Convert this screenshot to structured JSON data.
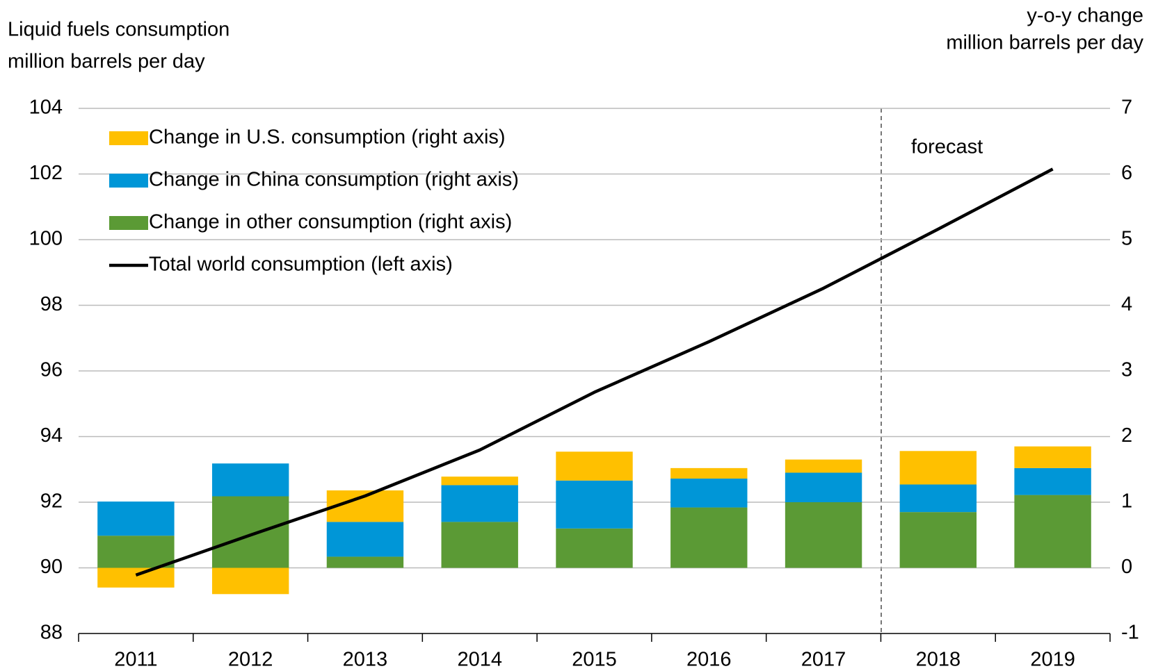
{
  "chart_data": {
    "type": "bar",
    "y_label": [
      "Liquid fuels consumption",
      "million barrels per day"
    ],
    "y2_label": [
      "y-o-y change",
      "million barrels per day"
    ],
    "annotation": "forecast",
    "categories": [
      "2011",
      "2012",
      "2013",
      "2014",
      "2015",
      "2016",
      "2017",
      "2018",
      "2019"
    ],
    "series": [
      {
        "name": "Change in U.S. consumption (right axis)",
        "color": "#ffc000",
        "axis": "y2",
        "type": "bar",
        "values": [
          -0.3,
          -0.4,
          0.48,
          0.13,
          0.44,
          0.16,
          0.2,
          0.51,
          0.33
        ]
      },
      {
        "name": "Change in China consumption (right axis)",
        "color": "#0096d7",
        "axis": "y2",
        "type": "bar",
        "values": [
          0.52,
          0.5,
          0.53,
          0.56,
          0.73,
          0.44,
          0.45,
          0.42,
          0.41
        ]
      },
      {
        "name": "Change in other consumption (right axis)",
        "color": "#5b9a35",
        "axis": "y2",
        "type": "bar",
        "values": [
          0.49,
          1.09,
          0.17,
          0.7,
          0.6,
          0.92,
          1.0,
          0.85,
          1.11
        ]
      },
      {
        "name": "Total world consumption (left axis)",
        "color": "#000000",
        "type": "line",
        "values": [
          89.78,
          91.0,
          92.19,
          93.59,
          95.35,
          96.89,
          98.52,
          100.32,
          102.15
        ]
      }
    ],
    "ylim": [
      88,
      104
    ],
    "yticks": [
      88,
      90,
      92,
      94,
      96,
      98,
      100,
      102,
      104
    ],
    "y2lim": [
      -1,
      7
    ],
    "y2ticks": [
      -1,
      0,
      1,
      2,
      3,
      4,
      5,
      6,
      7
    ],
    "grid": true,
    "legend": "upper left"
  }
}
